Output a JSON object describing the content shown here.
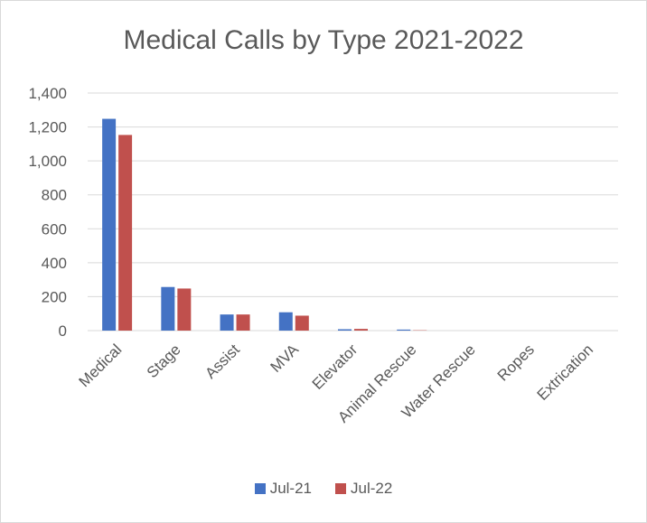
{
  "chart_data": {
    "type": "bar",
    "title": "Medical Calls by Type 2021-2022",
    "xlabel": "",
    "ylabel": "",
    "categories": [
      "Medical",
      "Stage",
      "Assist",
      "MVA",
      "Elevator",
      "Animal Rescue",
      "Water Rescue",
      "Ropes",
      "Extrication"
    ],
    "series": [
      {
        "name": "Jul-21",
        "color": "#4472c4",
        "values": [
          1248,
          257,
          95,
          108,
          8,
          6,
          0,
          0,
          0
        ]
      },
      {
        "name": "Jul-22",
        "color": "#c0504d",
        "values": [
          1153,
          248,
          95,
          88,
          10,
          2,
          0,
          0,
          0
        ]
      }
    ],
    "ylim": [
      0,
      1400
    ],
    "yticks": [
      0,
      200,
      400,
      600,
      800,
      1000,
      1200,
      1400
    ],
    "ytick_labels": [
      "0",
      "200",
      "400",
      "600",
      "800",
      "1,000",
      "1,200",
      "1,400"
    ],
    "grid": true,
    "legend_position": "bottom"
  }
}
